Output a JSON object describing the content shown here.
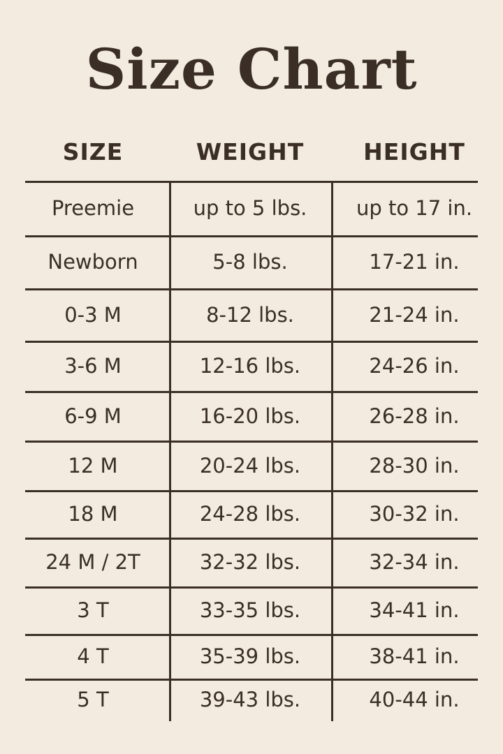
{
  "title": "Size Chart",
  "columns": [
    "SIZE",
    "WEIGHT",
    "HEIGHT"
  ],
  "rows": [
    [
      "Preemie",
      "up to 5 lbs.",
      "up to 17 in."
    ],
    [
      "Newborn",
      "5-8 lbs.",
      "17-21 in."
    ],
    [
      "0-3 M",
      "8-12 lbs.",
      "21-24 in."
    ],
    [
      "3-6 M",
      "12-16 lbs.",
      "24-26 in."
    ],
    [
      "6-9 M",
      "16-20 lbs.",
      "26-28 in."
    ],
    [
      "12 M",
      "20-24 lbs.",
      "28-30 in."
    ],
    [
      "18 M",
      "24-28 lbs.",
      "30-32 in."
    ],
    [
      "24 M / 2T",
      "32-32 lbs.",
      "32-34 in."
    ],
    [
      "3 T",
      "33-35 lbs.",
      "34-41 in."
    ],
    [
      "4 T",
      "35-39 lbs.",
      "38-41 in."
    ],
    [
      "5 T",
      "39-43 lbs.",
      "40-44 in."
    ]
  ],
  "colors": {
    "background": "#f3ebe0",
    "text": "#3a2e26"
  }
}
